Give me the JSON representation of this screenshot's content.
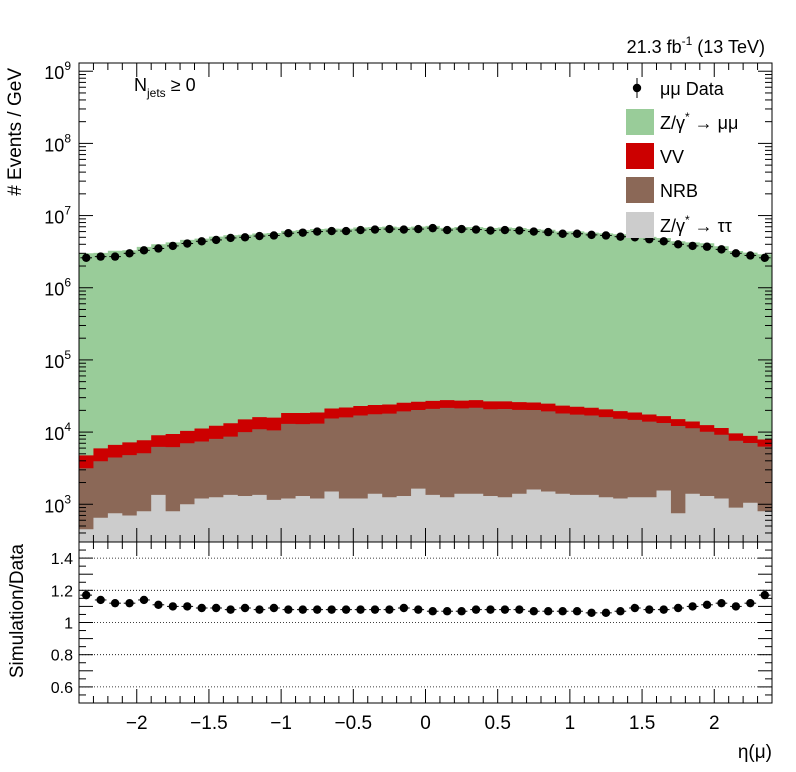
{
  "chart_data": [
    {
      "type": "area",
      "title": "",
      "annotation_text": "21.3 fb",
      "annotation_sup": "-1",
      "annotation_suffix": " (13 TeV)",
      "category_main": "N",
      "category_sub": "jets",
      "category_suffix": " ≥ 0",
      "ylabel": "# Events / GeV",
      "yscale": "log",
      "ylim": [
        300,
        1300000000
      ],
      "y_ticks": [
        {
          "base": "10",
          "exp": "3",
          "v": 1000
        },
        {
          "base": "10",
          "exp": "4",
          "v": 10000
        },
        {
          "base": "10",
          "exp": "5",
          "v": 100000
        },
        {
          "base": "10",
          "exp": "6",
          "v": 1000000
        },
        {
          "base": "10",
          "exp": "7",
          "v": 10000000
        },
        {
          "base": "10",
          "exp": "8",
          "v": 100000000
        },
        {
          "base": "10",
          "exp": "9",
          "v": 1000000000
        }
      ],
      "xlim": [
        -2.4,
        2.4
      ],
      "bin_width": 0.1,
      "legend_placement": "top-right",
      "legend": [
        {
          "id": "data",
          "label": "μμ Data"
        },
        {
          "id": "zmm",
          "label_main": "Z/γ",
          "label_sup": "*",
          "label_suffix": " → μμ"
        },
        {
          "id": "vv",
          "label": "VV"
        },
        {
          "id": "nrb",
          "label": "NRB"
        },
        {
          "id": "ztt",
          "label_main": "Z/γ",
          "label_sup": "*",
          "label_suffix": " → ττ"
        }
      ],
      "colors": {
        "zmm": "#99cc99",
        "vv": "#cc0000",
        "nrb": "#8b6857",
        "ztt": "#cccccc",
        "data": "#000000"
      },
      "series": [
        {
          "id": "ztt",
          "values": [
            450,
            650,
            750,
            700,
            800,
            1350,
            800,
            1000,
            1200,
            1250,
            1350,
            1300,
            1350,
            1150,
            1200,
            1300,
            1200,
            1500,
            1200,
            1200,
            1400,
            1250,
            1300,
            1650,
            1350,
            1250,
            1400,
            1400,
            1300,
            1250,
            1400,
            1600,
            1500,
            1400,
            1350,
            1350,
            1250,
            1200,
            1250,
            1250,
            1550,
            750,
            1400,
            1300,
            1200,
            900,
            1050,
            800
          ]
        },
        {
          "id": "nrb",
          "values": [
            2700,
            3300,
            3700,
            4100,
            4300,
            4900,
            5400,
            6000,
            6200,
            6800,
            7300,
            8700,
            9600,
            9400,
            11800,
            11600,
            11900,
            13900,
            14800,
            15800,
            16300,
            16800,
            18100,
            18600,
            19600,
            20400,
            19900,
            20300,
            19400,
            19600,
            18900,
            18600,
            17900,
            16700,
            16100,
            15600,
            14900,
            14100,
            13500,
            12700,
            11800,
            11400,
            9900,
            8800,
            8000,
            6700,
            6000,
            5500
          ]
        },
        {
          "id": "vv",
          "values": [
            1600,
            2000,
            2200,
            2400,
            2600,
            2800,
            3200,
            3400,
            3800,
            4200,
            4600,
            5000,
            5200,
            5300,
            5400,
            5500,
            5600,
            5800,
            5900,
            6000,
            6000,
            6100,
            6100,
            6100,
            6100,
            6100,
            6000,
            6000,
            5900,
            5800,
            5700,
            5500,
            5400,
            5200,
            5000,
            4800,
            4500,
            4200,
            3900,
            3600,
            3300,
            3000,
            2700,
            2400,
            2200,
            2000,
            1800,
            1600
          ]
        },
        {
          "id": "zmm",
          "values": [
            3000000,
            3030000,
            3250000,
            3300000,
            3680000,
            3990000,
            4250000,
            4600000,
            4780000,
            5090000,
            5330000,
            5400000,
            5630000,
            5710000,
            6130000,
            6260000,
            6490000,
            6580000,
            6550000,
            6810000,
            6880000,
            7000000,
            6840000,
            6990000,
            7160000,
            6730000,
            6930000,
            6880000,
            6690000,
            6800000,
            6690000,
            6470000,
            6330000,
            6000000,
            6010000,
            5790000,
            5640000,
            5490000,
            5300000,
            5060000,
            4880000,
            4400000,
            4240000,
            4120000,
            3750000,
            3220000,
            3060000,
            2900000
          ]
        }
      ],
      "data_points": [
        2600000,
        2700000,
        2700000,
        3000000,
        3300000,
        3500000,
        3800000,
        4100000,
        4400000,
        4600000,
        4900000,
        5000000,
        5200000,
        5300000,
        5700000,
        5800000,
        6000000,
        6100000,
        6100000,
        6300000,
        6400000,
        6500000,
        6400000,
        6500000,
        6700000,
        6300000,
        6500000,
        6400000,
        6200000,
        6300000,
        6200000,
        6000000,
        5900000,
        5600000,
        5600000,
        5400000,
        5300000,
        5100000,
        5000000,
        4700000,
        4400000,
        4000000,
        3800000,
        3700000,
        3400000,
        3000000,
        2800000,
        2600000
      ]
    },
    {
      "type": "scatter",
      "ylabel": "Simulation/Data",
      "xlabel": "η(μ)",
      "ylim": [
        0.5,
        1.5
      ],
      "y_ticks": [
        "0.6",
        "0.8",
        "1",
        "1.2",
        "1.4"
      ],
      "y_tick_values": [
        0.6,
        0.8,
        1.0,
        1.2,
        1.4
      ],
      "x_ticks": [
        "−2",
        "−1.5",
        "−1",
        "−0.5",
        "0",
        "0.5",
        "1",
        "1.5",
        "2"
      ],
      "x_tick_values": [
        -2,
        -1.5,
        -1,
        -0.5,
        0,
        0.5,
        1,
        1.5,
        2
      ],
      "grid": "dotted horizontal",
      "values": [
        1.17,
        1.14,
        1.12,
        1.12,
        1.14,
        1.11,
        1.1,
        1.1,
        1.09,
        1.09,
        1.08,
        1.09,
        1.08,
        1.09,
        1.08,
        1.08,
        1.08,
        1.08,
        1.08,
        1.08,
        1.08,
        1.08,
        1.09,
        1.08,
        1.07,
        1.07,
        1.07,
        1.08,
        1.08,
        1.08,
        1.08,
        1.07,
        1.07,
        1.07,
        1.07,
        1.06,
        1.06,
        1.07,
        1.09,
        1.08,
        1.08,
        1.09,
        1.1,
        1.11,
        1.12,
        1.1,
        1.12,
        1.17
      ]
    }
  ]
}
